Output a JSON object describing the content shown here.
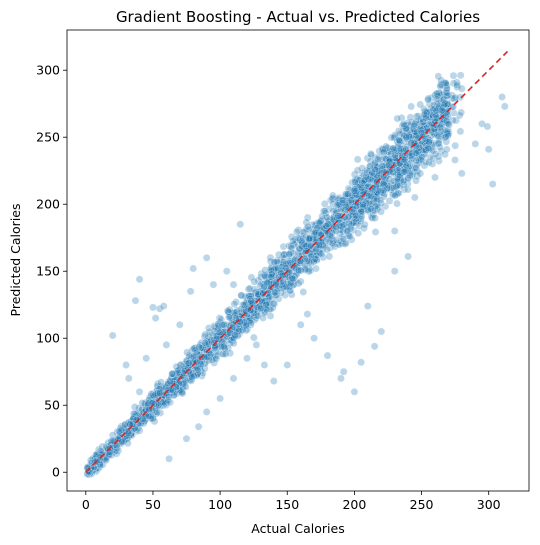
{
  "chart_data": {
    "type": "scatter",
    "title": "Gradient Boosting - Actual vs. Predicted Calories",
    "xlabel": "Actual Calories",
    "ylabel": "Predicted Calories",
    "xlim": [
      -14,
      330
    ],
    "ylim": [
      -14,
      330
    ],
    "xticks": [
      0,
      50,
      100,
      150,
      200,
      250,
      300
    ],
    "yticks": [
      0,
      50,
      100,
      150,
      200,
      250,
      300
    ],
    "grid": false,
    "legend": "none",
    "series": [
      {
        "name": "",
        "marker_color": "#1f77b4",
        "marker_opacity": 0.3,
        "trend": {
          "comment_free": true,
          "main_cloud": {
            "x_min": 1,
            "x_max": 290,
            "band_halfwidth": 15
          },
          "outliers": [
            [
              20,
              102
            ],
            [
              37,
              128
            ],
            [
              40,
              144
            ],
            [
              50,
              123
            ],
            [
              52,
              115
            ],
            [
              55,
              122
            ],
            [
              58,
              124
            ],
            [
              78,
              135
            ],
            [
              80,
              152
            ],
            [
              90,
              160
            ],
            [
              140,
              68
            ],
            [
              150,
              80
            ],
            [
              160,
              110
            ],
            [
              165,
              118
            ],
            [
              170,
              100
            ],
            [
              180,
              87
            ],
            [
              190,
              70
            ],
            [
              192,
              75
            ],
            [
              200,
              60
            ],
            [
              205,
              82
            ],
            [
              210,
              124
            ],
            [
              215,
              94
            ],
            [
              220,
              105
            ],
            [
              230,
              150
            ],
            [
              240,
              161
            ],
            [
              255,
              242
            ],
            [
              265,
              270
            ],
            [
              270,
              260
            ],
            [
              280,
              223
            ],
            [
              290,
              245
            ],
            [
              295,
              260
            ],
            [
              299,
              258
            ],
            [
              300,
              241
            ],
            [
              310,
              280
            ],
            [
              312,
              273
            ],
            [
              303,
              215
            ],
            [
              30,
              80
            ],
            [
              32,
              70
            ],
            [
              62,
              10
            ],
            [
              75,
              25
            ],
            [
              84,
              34
            ],
            [
              90,
              45
            ],
            [
              100,
              55
            ],
            [
              110,
              70
            ],
            [
              120,
              85
            ],
            [
              127,
              95
            ],
            [
              133,
              80
            ],
            [
              105,
              150
            ],
            [
              110,
              140
            ],
            [
              115,
              185
            ],
            [
              95,
              140
            ],
            [
              70,
              110
            ],
            [
              60,
              95
            ],
            [
              45,
              85
            ],
            [
              40,
              60
            ],
            [
              200,
              210
            ],
            [
              230,
              180
            ],
            [
              245,
              205
            ],
            [
              260,
              220
            ]
          ]
        }
      }
    ],
    "reference_line": {
      "from": [
        0,
        0
      ],
      "to": [
        314,
        314
      ],
      "color": "#d62728",
      "style": "dashed"
    }
  }
}
